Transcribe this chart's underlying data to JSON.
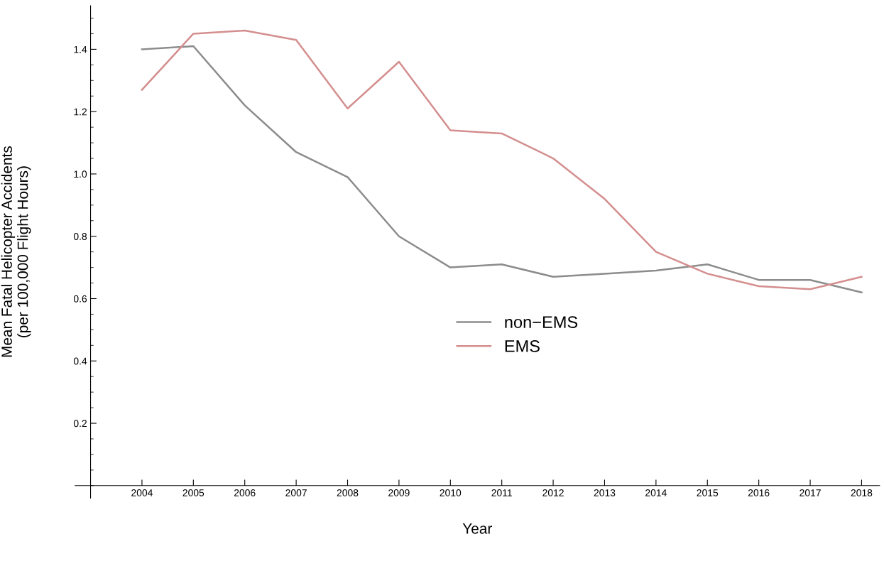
{
  "chart_data": {
    "type": "line",
    "xlabel": "Year",
    "ylabel": "Mean Fatal Helicopter Accidents\n(per 100,000 Flight Hours)",
    "x": [
      2004,
      2005,
      2006,
      2007,
      2008,
      2009,
      2010,
      2011,
      2012,
      2013,
      2014,
      2015,
      2016,
      2017,
      2018
    ],
    "series": [
      {
        "name": "non−EMS",
        "color": "#8c8c8c",
        "values": [
          1.4,
          1.41,
          1.22,
          1.07,
          0.99,
          0.8,
          0.7,
          0.71,
          0.67,
          0.68,
          0.69,
          0.71,
          0.66,
          0.66,
          0.62
        ]
      },
      {
        "name": "EMS",
        "color": "#d48e8e",
        "values": [
          1.27,
          1.45,
          1.46,
          1.43,
          1.21,
          1.36,
          1.14,
          1.13,
          1.05,
          0.92,
          0.75,
          0.68,
          0.64,
          0.63,
          0.67
        ]
      }
    ],
    "xlim": [
      2002.7,
      2018.35
    ],
    "ylim": [
      -0.04,
      1.54
    ],
    "xticks": [
      2004,
      2005,
      2006,
      2007,
      2008,
      2009,
      2010,
      2011,
      2012,
      2013,
      2014,
      2015,
      2016,
      2017,
      2018
    ],
    "yticks": [
      {
        "value": 0.2,
        "label": "0.2"
      },
      {
        "value": 0.4,
        "label": "0.4"
      },
      {
        "value": 0.6,
        "label": "0.6"
      },
      {
        "value": 0.8,
        "label": "0.8"
      },
      {
        "value": 1.0,
        "label": "1.0"
      },
      {
        "value": 1.2,
        "label": "1.2"
      },
      {
        "value": 1.4,
        "label": "1.4"
      }
    ],
    "grid": false,
    "legend": "center",
    "marker": "none",
    "line_style": "solid"
  }
}
